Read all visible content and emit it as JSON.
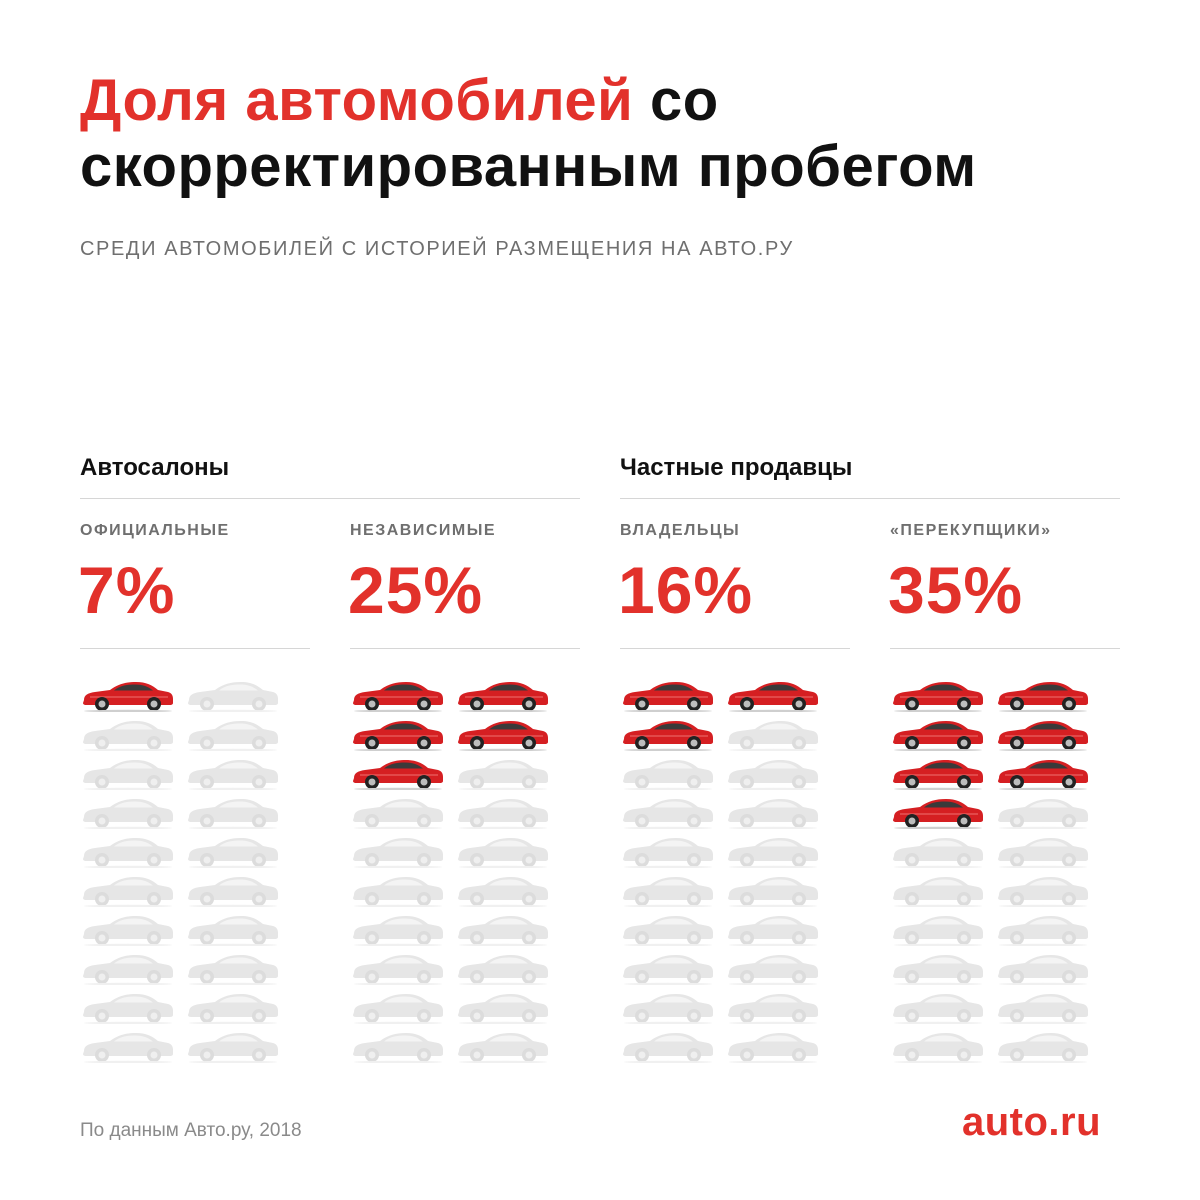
{
  "header": {
    "title_accent": "Доля автомобилей",
    "title_rest": "со скорректированным пробегом",
    "subtitle": "СРЕДИ АВТОМОБИЛЕЙ С ИСТОРИЕЙ РАЗМЕЩЕНИЯ НА АВТО.РУ"
  },
  "groups": [
    {
      "label": "Автосалоны"
    },
    {
      "label": "Частные продавцы"
    }
  ],
  "colors": {
    "accent": "#e2312b",
    "highlight_car": "#d51f22",
    "muted_car": "#e6e6e6"
  },
  "chart_data": {
    "type": "pictogram",
    "title": "Доля автомобилей со скорректированным пробегом",
    "subtitle": "СРЕДИ АВТОМОБИЛЕЙ С ИСТОРИЕЙ РАЗМЕЩЕНИЯ НА АВТО.РУ",
    "units_per_column": 20,
    "categories": [
      {
        "group": "Автосалоны",
        "name": "ОФИЦИАЛЬНЫЕ",
        "value_label": "7%",
        "value": 7,
        "highlighted_icons": 1
      },
      {
        "group": "Автосалоны",
        "name": "НЕЗАВИСИМЫЕ",
        "value_label": "25%",
        "value": 25,
        "highlighted_icons": 5
      },
      {
        "group": "Частные продавцы",
        "name": "ВЛАДЕЛЬЦЫ",
        "value_label": "16%",
        "value": 16,
        "highlighted_icons": 3
      },
      {
        "group": "Частные продавцы",
        "name": "«ПЕРЕКУПЩИКИ»",
        "value_label": "35%",
        "value": 35,
        "highlighted_icons": 7
      }
    ]
  },
  "footer": {
    "source": "По данным Авто.ру, 2018",
    "logo": "auto.ru"
  }
}
